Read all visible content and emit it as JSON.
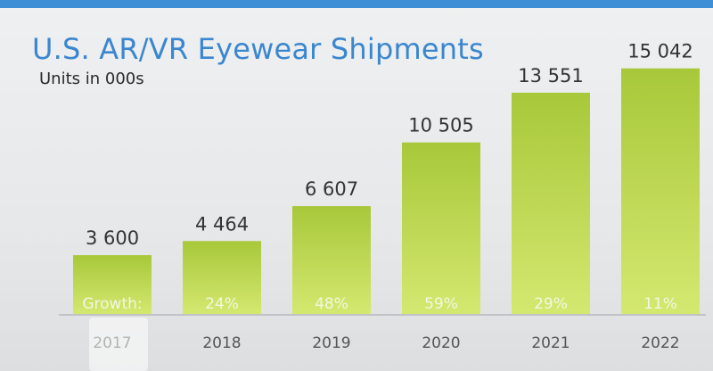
{
  "chart_data": {
    "type": "bar",
    "title": "U.S. AR/VR Eyewear Shipments",
    "subtitle": "Units in 000s",
    "categories": [
      "2017",
      "2018",
      "2019",
      "2020",
      "2021",
      "2022"
    ],
    "values": [
      3600,
      4464,
      6607,
      10505,
      13551,
      15042
    ],
    "value_labels": [
      "3 600",
      "4 464",
      "6 607",
      "10 505",
      "13 551",
      "15 042"
    ],
    "growth_label": "Growth:",
    "growth": [
      "",
      "24%",
      "48%",
      "59%",
      "29%",
      "11%"
    ],
    "bar_color": "#a8c83a",
    "bar_color_light": "#d4e870",
    "ylim": [
      0,
      16500
    ]
  },
  "colors": {
    "title": "#3a86cf",
    "accent_rule": "#3e8fd6"
  }
}
